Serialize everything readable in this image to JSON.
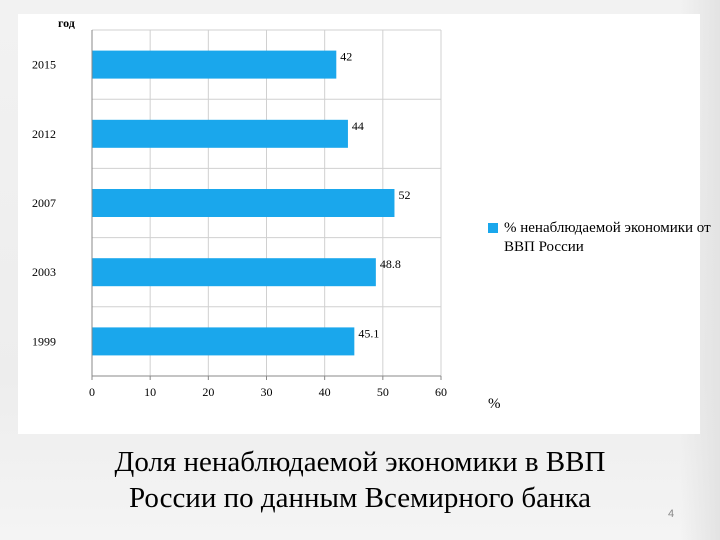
{
  "slide": {
    "title_line1": "Доля ненаблюдаемой экономики в ВВП",
    "title_line2": "России по данным Всемирного банка",
    "page_number": "4"
  },
  "chart_data": {
    "type": "bar",
    "orientation": "horizontal",
    "ylabel": "год",
    "xlabel": "%",
    "categories": [
      "2015",
      "2012",
      "2007",
      "2003",
      "1999"
    ],
    "series": [
      {
        "name": "% ненаблюдаемой экономики от ВВП России",
        "values": [
          42,
          44,
          52,
          48.8,
          45.1
        ],
        "data_labels": [
          "42",
          "44",
          "52",
          "48.8",
          "45.1"
        ],
        "color": "#1aa7ec"
      }
    ],
    "xlim": [
      0,
      60
    ],
    "xticks": [
      "0",
      "10",
      "20",
      "30",
      "40",
      "50",
      "60"
    ],
    "grid": true,
    "legend_position": "right"
  }
}
